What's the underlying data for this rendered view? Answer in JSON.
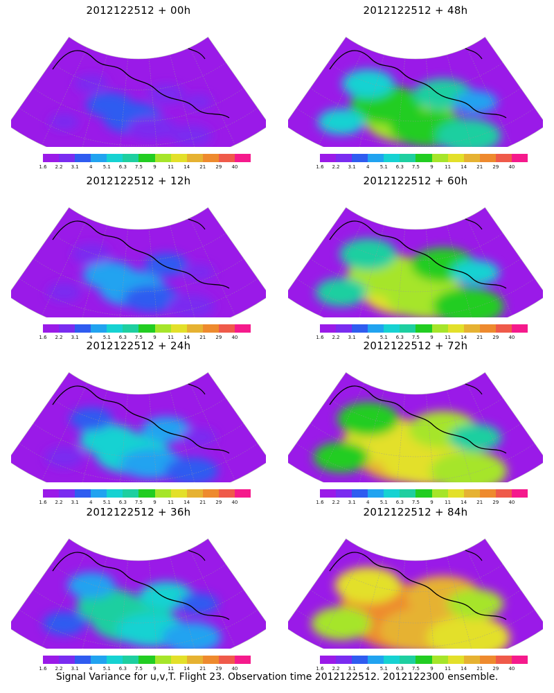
{
  "caption": "Signal Variance for u,v,T. Flight 23. Observation time 2012122512. 2012122300 ensemble.",
  "colorbar": {
    "labels": [
      "1.6",
      "2.2",
      "3.1",
      "4",
      "5.1",
      "6.3",
      "7.5",
      "9",
      "11",
      "14",
      "21",
      "29",
      "40"
    ],
    "colors": [
      "#9a1ae8",
      "#7a2cf0",
      "#2f5cf0",
      "#21a3f0",
      "#16d2d2",
      "#1ecfa0",
      "#22cd22",
      "#a6e52a",
      "#e3e02a",
      "#e6b232",
      "#ee8a2e",
      "#ef5a4a",
      "#f51a8c"
    ]
  },
  "map": {
    "land_color": "#ffffff",
    "grid_color": "#9a9a9a",
    "coast_color": "#000000"
  },
  "panels": [
    {
      "title": "2012122512 + 00h",
      "lead_hours": 0
    },
    {
      "title": "2012122512 + 48h",
      "lead_hours": 48
    },
    {
      "title": "2012122512 + 12h",
      "lead_hours": 12
    },
    {
      "title": "2012122512 + 60h",
      "lead_hours": 60
    },
    {
      "title": "2012122512 + 24h",
      "lead_hours": 24
    },
    {
      "title": "2012122512 + 72h",
      "lead_hours": 72
    },
    {
      "title": "2012122512 + 36h",
      "lead_hours": 36
    },
    {
      "title": "2012122512 + 84h",
      "lead_hours": 84
    }
  ]
}
